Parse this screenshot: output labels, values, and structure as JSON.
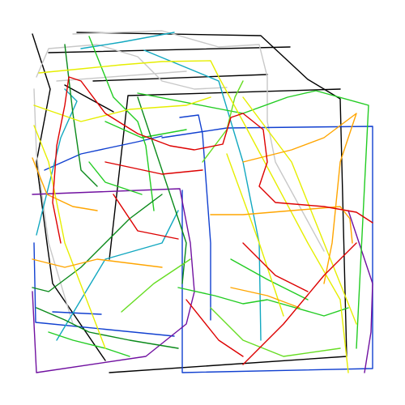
{
  "palette": {
    "black": "#000000",
    "gray": "#c8c8c8",
    "green": "#22cc22",
    "dark_green": "#0a8a1a",
    "lime": "#66dd22",
    "yellow": "#e6ee00",
    "orange": "#ffa500",
    "red": "#dd0000",
    "blue": "#1140d0",
    "cyan": "#12a8c0",
    "purple": "#7010a0"
  },
  "strokes": [
    {
      "color": "black",
      "name": "black-stroke"
    },
    {
      "color": "black",
      "name": "black-stroke"
    },
    {
      "color": "black",
      "name": "black-stroke"
    },
    {
      "color": "black",
      "name": "black-stroke"
    },
    {
      "color": "black",
      "name": "black-stroke"
    },
    {
      "color": "black",
      "name": "black-stroke"
    },
    {
      "color": "gray",
      "name": "gray-stroke"
    },
    {
      "color": "gray",
      "name": "gray-stroke"
    },
    {
      "color": "gray",
      "name": "gray-stroke"
    },
    {
      "color": "gray",
      "name": "gray-stroke"
    },
    {
      "color": "blue",
      "name": "blue-stroke"
    },
    {
      "color": "blue",
      "name": "blue-stroke"
    },
    {
      "color": "blue",
      "name": "blue-stroke"
    },
    {
      "color": "blue",
      "name": "blue-stroke"
    },
    {
      "color": "blue",
      "name": "blue-stroke"
    },
    {
      "color": "purple",
      "name": "purple-stroke"
    },
    {
      "color": "purple",
      "name": "purple-stroke"
    },
    {
      "color": "cyan",
      "name": "cyan-stroke"
    },
    {
      "color": "cyan",
      "name": "cyan-stroke"
    },
    {
      "color": "cyan",
      "name": "cyan-stroke"
    },
    {
      "color": "cyan",
      "name": "cyan-stroke"
    },
    {
      "color": "green",
      "name": "green-stroke"
    },
    {
      "color": "green",
      "name": "green-stroke"
    },
    {
      "color": "green",
      "name": "green-stroke"
    },
    {
      "color": "green",
      "name": "green-stroke"
    },
    {
      "color": "green",
      "name": "green-stroke"
    },
    {
      "color": "green",
      "name": "green-stroke"
    },
    {
      "color": "green",
      "name": "green-stroke"
    },
    {
      "color": "dark_green",
      "name": "dark-green-stroke"
    },
    {
      "color": "dark_green",
      "name": "dark-green-stroke"
    },
    {
      "color": "dark_green",
      "name": "dark-green-stroke"
    },
    {
      "color": "dark_green",
      "name": "dark-green-stroke"
    },
    {
      "color": "lime",
      "name": "lime-stroke"
    },
    {
      "color": "lime",
      "name": "lime-stroke"
    },
    {
      "color": "lime",
      "name": "lime-stroke"
    },
    {
      "color": "yellow",
      "name": "yellow-stroke"
    },
    {
      "color": "yellow",
      "name": "yellow-stroke"
    },
    {
      "color": "yellow",
      "name": "yellow-stroke"
    },
    {
      "color": "yellow",
      "name": "yellow-stroke"
    },
    {
      "color": "yellow",
      "name": "yellow-stroke"
    },
    {
      "color": "orange",
      "name": "orange-stroke"
    },
    {
      "color": "orange",
      "name": "orange-stroke"
    },
    {
      "color": "orange",
      "name": "orange-stroke"
    },
    {
      "color": "orange",
      "name": "orange-stroke"
    },
    {
      "color": "orange",
      "name": "orange-stroke"
    },
    {
      "color": "red",
      "name": "red-stroke"
    },
    {
      "color": "red",
      "name": "red-stroke"
    },
    {
      "color": "red",
      "name": "red-stroke"
    },
    {
      "color": "red",
      "name": "red-stroke"
    },
    {
      "color": "red",
      "name": "red-stroke"
    },
    {
      "color": "red",
      "name": "red-stroke"
    }
  ]
}
